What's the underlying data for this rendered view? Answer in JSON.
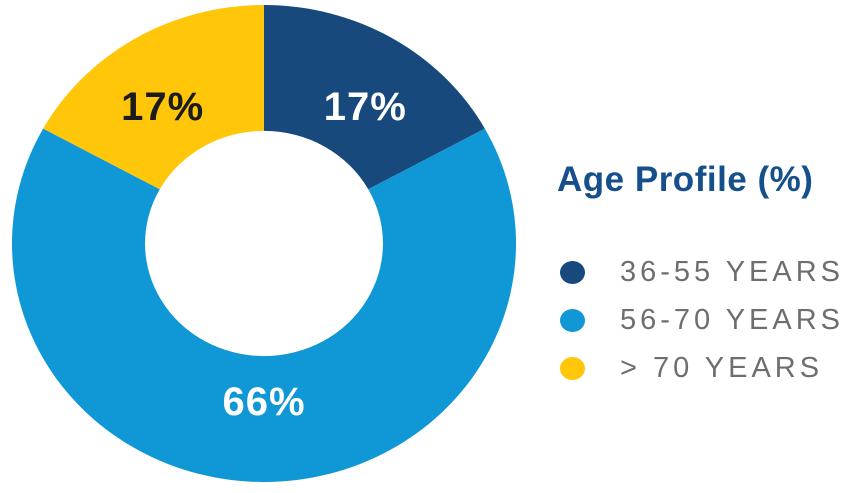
{
  "chart_data": {
    "type": "pie",
    "subtype": "donut",
    "title": "Age Profile (%)",
    "direction": "clockwise",
    "start_angle_deg": 0,
    "inner_radius_ratio": 0.472,
    "legend_position": "right",
    "total": 100,
    "segments": [
      {
        "label": "36-55 YEARS",
        "value": 17,
        "data_label": "17%",
        "color": "#17497C",
        "data_label_color": "#FFFFFF"
      },
      {
        "label": "56-70 YEARS",
        "value": 66,
        "data_label": "66%",
        "color": "#1097D6",
        "data_label_color": "#FFFFFF"
      },
      {
        "label": "> 70 YEARS",
        "value": 17,
        "data_label": "17%",
        "color": "#FFC60A",
        "data_label_color": "#1B1B1B"
      }
    ],
    "legend_title_color": "#16508C",
    "legend_text_color": "#6D6E70",
    "background_color": "#FFFFFF"
  }
}
